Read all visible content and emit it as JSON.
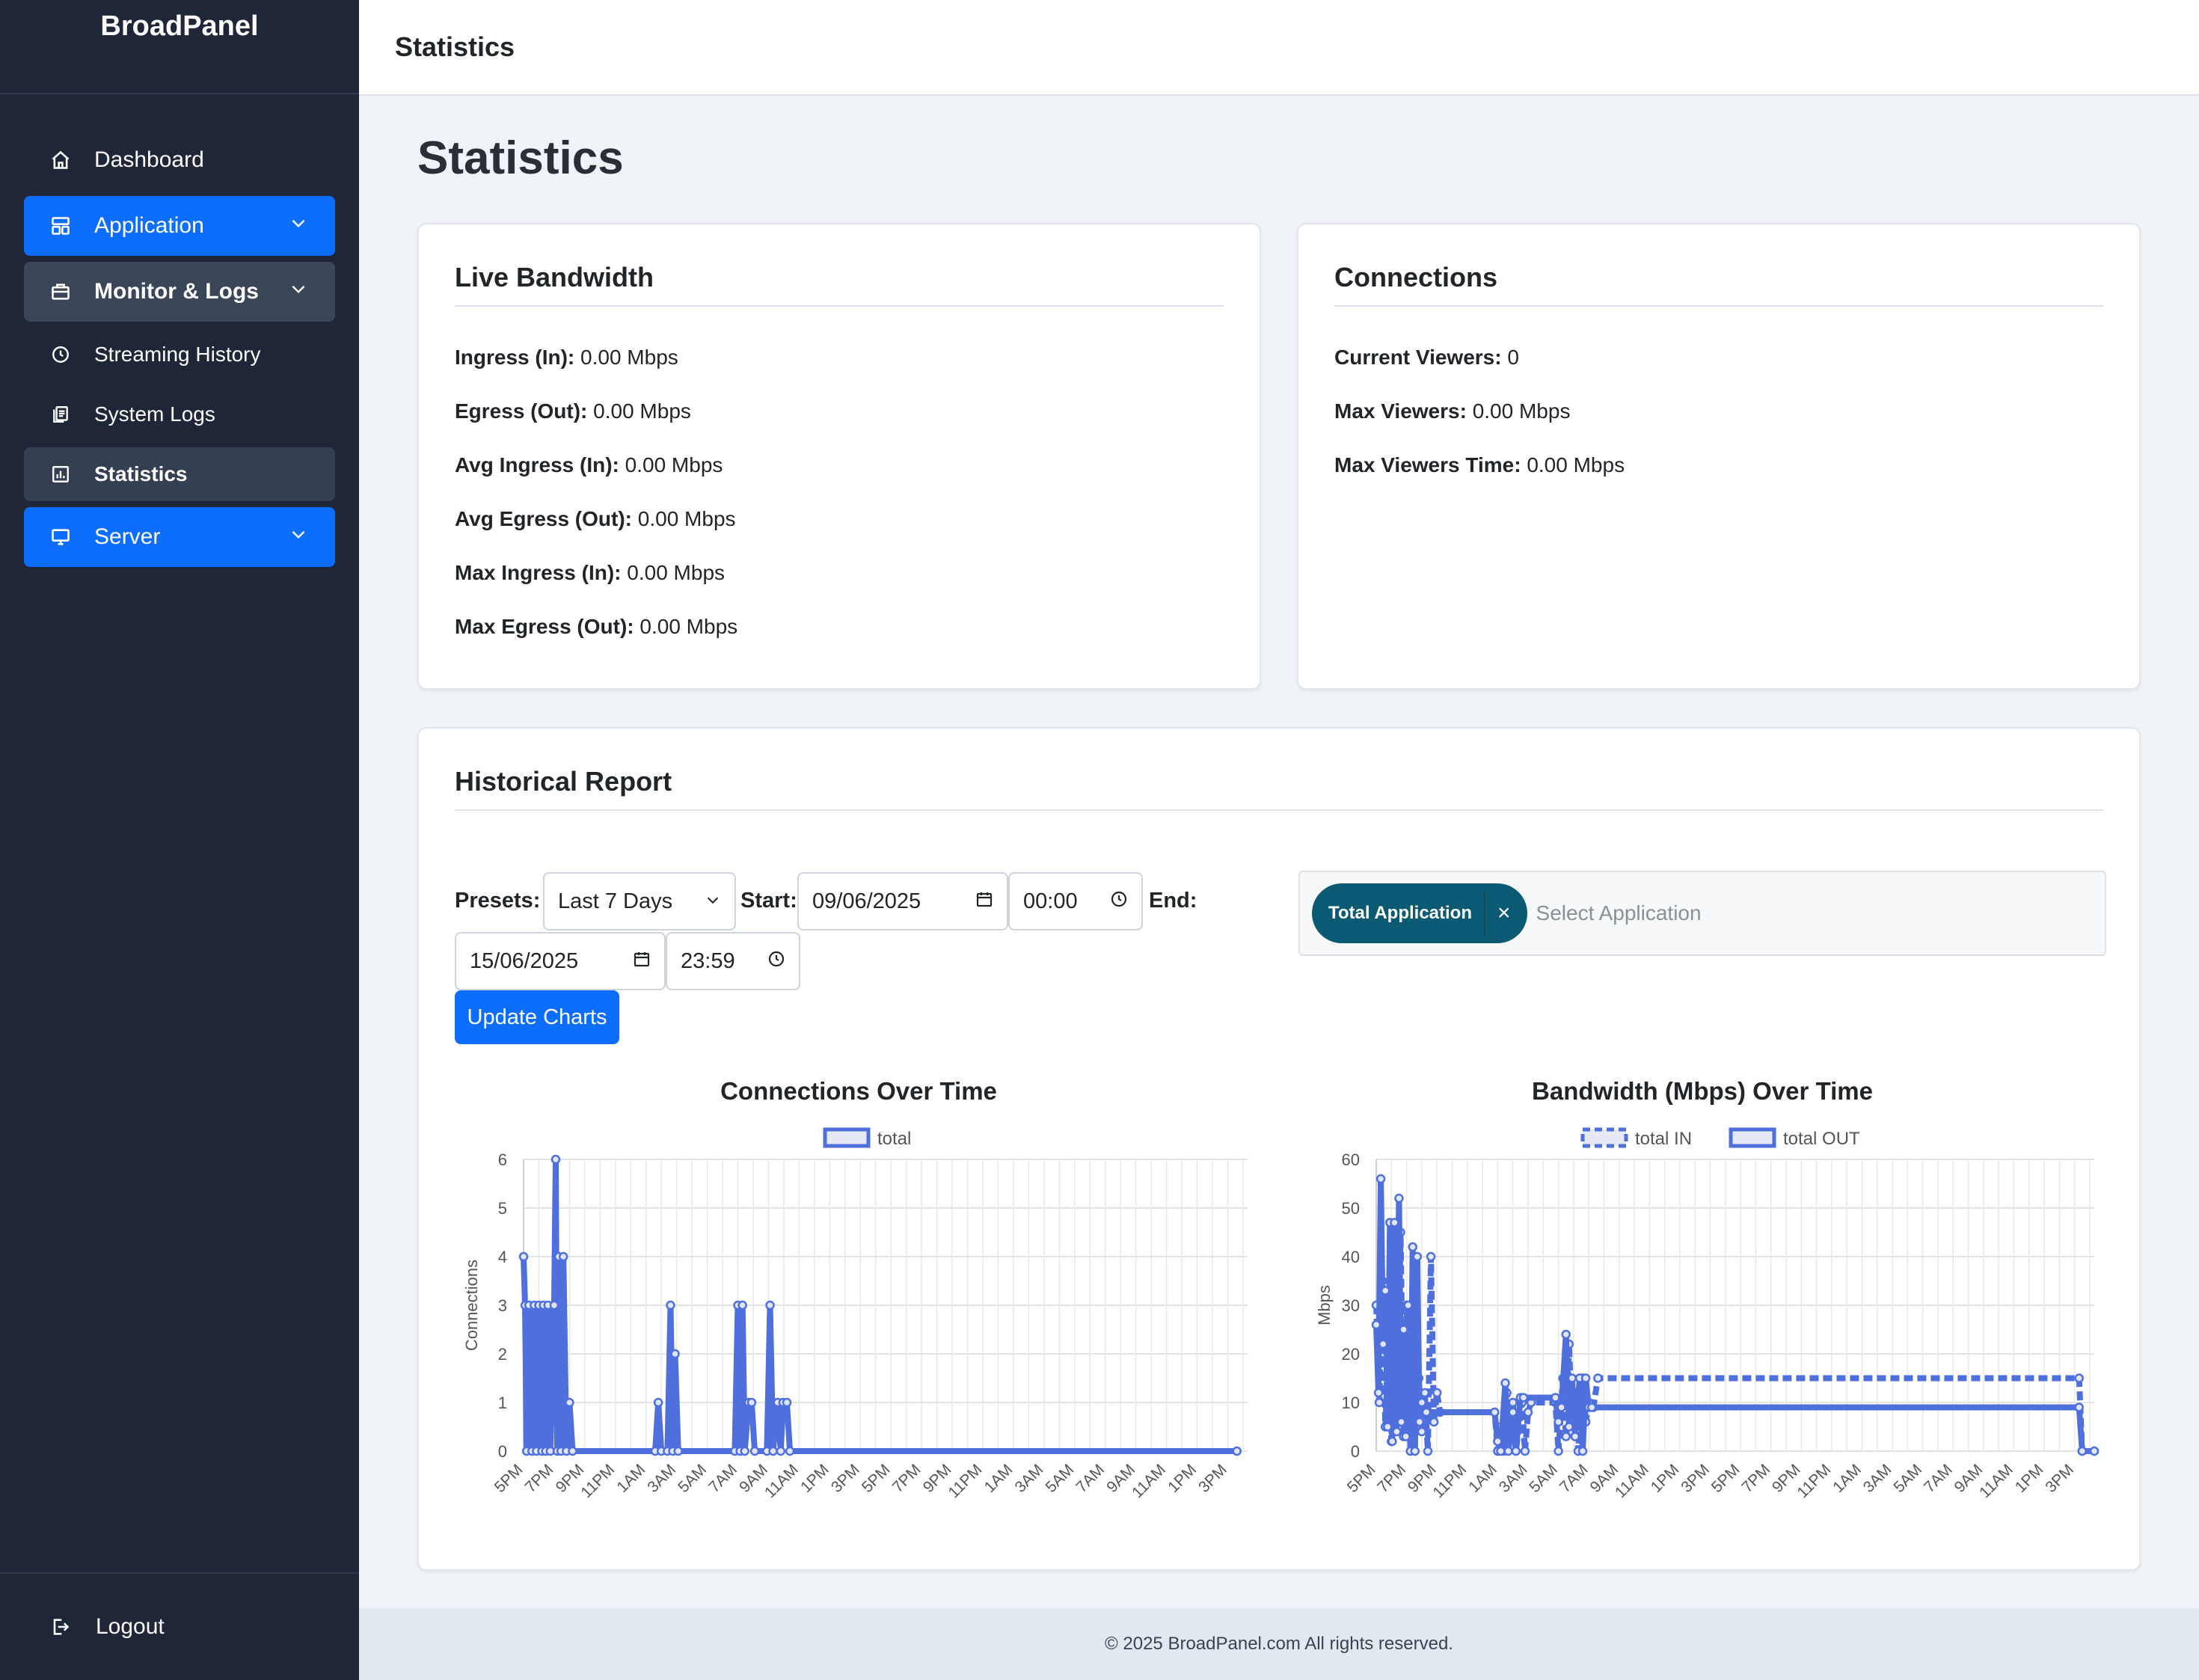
{
  "brand": "BroadPanel",
  "sidebar": {
    "items": [
      {
        "label": "Dashboard",
        "icon": "home-icon"
      },
      {
        "label": "Application",
        "icon": "layout-icon"
      },
      {
        "label": "Monitor & Logs",
        "icon": "briefcase-icon"
      },
      {
        "label": "Streaming History",
        "icon": "clock-icon"
      },
      {
        "label": "System Logs",
        "icon": "files-icon"
      },
      {
        "label": "Statistics",
        "icon": "bar-chart-icon"
      },
      {
        "label": "Server",
        "icon": "monitor-icon"
      }
    ],
    "logout": "Logout"
  },
  "header": {
    "title": "Statistics"
  },
  "page_title": "Statistics",
  "live_bandwidth": {
    "title": "Live Bandwidth",
    "rows": [
      {
        "label": "Ingress (In):",
        "value": "0.00 Mbps"
      },
      {
        "label": "Egress (Out):",
        "value": "0.00 Mbps"
      },
      {
        "label": "Avg Ingress (In):",
        "value": "0.00 Mbps"
      },
      {
        "label": "Avg Egress (Out):",
        "value": "0.00 Mbps"
      },
      {
        "label": "Max Ingress (In):",
        "value": "0.00 Mbps"
      },
      {
        "label": "Max Egress (Out):",
        "value": "0.00 Mbps"
      }
    ]
  },
  "connections": {
    "title": "Connections",
    "rows": [
      {
        "label": "Current Viewers:",
        "value": "0"
      },
      {
        "label": "Max Viewers:",
        "value": "0.00 Mbps"
      },
      {
        "label": "Max Viewers Time:",
        "value": "0.00 Mbps"
      }
    ]
  },
  "report": {
    "title": "Historical Report",
    "presets_label": "Presets:",
    "preset_value": "Last 7 Days",
    "start_label": "Start:",
    "start_date": "09/06/2025",
    "start_time": "00:00",
    "end_label": "End:",
    "end_date": "15/06/2025",
    "end_time": "23:59",
    "update_button": "Update Charts",
    "selected_tag": "Total Application",
    "tag_remove": "×",
    "select_placeholder": "Select Application"
  },
  "colors": {
    "series": "#4e6fdc",
    "accent": "#0d6efd",
    "tag": "#0a5a73"
  },
  "chart_data": [
    {
      "type": "line",
      "title": "Connections Over Time",
      "ylabel": "Connections",
      "ylim": [
        0,
        6
      ],
      "yticks": [
        0,
        1,
        2,
        3,
        4,
        5,
        6
      ],
      "xtick_labels": [
        "5PM",
        "7PM",
        "9PM",
        "11PM",
        "1AM",
        "3AM",
        "5AM",
        "7AM",
        "9AM",
        "11AM",
        "1PM",
        "3PM",
        "5PM",
        "7PM",
        "9PM",
        "11PM",
        "1AM",
        "3AM",
        "5AM",
        "7AM",
        "9AM",
        "11AM",
        "1PM",
        "3PM"
      ],
      "series": [
        {
          "name": "total",
          "style": "solid",
          "values": [
            [
              0,
              4
            ],
            [
              0.1,
              3
            ],
            [
              0.2,
              0
            ],
            [
              0.35,
              3
            ],
            [
              0.55,
              0
            ],
            [
              0.7,
              3
            ],
            [
              0.85,
              0
            ],
            [
              1.0,
              3
            ],
            [
              1.2,
              0
            ],
            [
              1.3,
              3
            ],
            [
              1.45,
              0
            ],
            [
              1.6,
              3
            ],
            [
              1.75,
              0
            ],
            [
              2.0,
              3
            ],
            [
              2.1,
              6
            ],
            [
              2.2,
              0
            ],
            [
              2.3,
              4
            ],
            [
              2.45,
              0
            ],
            [
              2.6,
              4
            ],
            [
              2.8,
              0
            ],
            [
              3.0,
              1
            ],
            [
              3.2,
              0
            ],
            [
              8.6,
              0
            ],
            [
              8.8,
              1
            ],
            [
              9.0,
              0
            ],
            [
              9.4,
              0
            ],
            [
              9.6,
              3
            ],
            [
              9.75,
              0
            ],
            [
              9.9,
              2
            ],
            [
              10.1,
              0
            ],
            [
              13.8,
              0
            ],
            [
              14.0,
              3
            ],
            [
              14.15,
              0
            ],
            [
              14.3,
              3
            ],
            [
              14.45,
              0
            ],
            [
              14.7,
              1
            ],
            [
              14.9,
              1
            ],
            [
              15.1,
              0
            ],
            [
              15.9,
              0
            ],
            [
              16.1,
              3
            ],
            [
              16.3,
              0
            ],
            [
              16.6,
              1
            ],
            [
              16.8,
              0
            ],
            [
              16.95,
              1
            ],
            [
              17.2,
              1
            ],
            [
              17.4,
              0
            ],
            [
              46.6,
              0
            ]
          ]
        }
      ]
    },
    {
      "type": "line",
      "title": "Bandwidth (Mbps) Over Time",
      "ylabel": "Mbps",
      "ylim": [
        0,
        60
      ],
      "yticks": [
        0,
        10,
        20,
        30,
        40,
        50,
        60
      ],
      "xtick_labels": [
        "5PM",
        "7PM",
        "9PM",
        "11PM",
        "1AM",
        "3AM",
        "5AM",
        "7AM",
        "9AM",
        "11AM",
        "1PM",
        "3PM",
        "5PM",
        "7PM",
        "9PM",
        "11PM",
        "1AM",
        "3AM",
        "5AM",
        "7AM",
        "9AM",
        "11AM",
        "1PM",
        "3PM"
      ],
      "series": [
        {
          "name": "total IN",
          "style": "dashed",
          "values": [
            [
              0,
              30
            ],
            [
              0.2,
              10
            ],
            [
              0.4,
              35
            ],
            [
              0.6,
              5
            ],
            [
              0.8,
              22
            ],
            [
              1.0,
              2
            ],
            [
              1.2,
              40
            ],
            [
              1.4,
              6
            ],
            [
              1.6,
              45
            ],
            [
              1.8,
              3
            ],
            [
              2.0,
              30
            ],
            [
              2.2,
              8
            ],
            [
              2.4,
              20
            ],
            [
              2.6,
              5
            ],
            [
              2.8,
              15
            ],
            [
              3.0,
              4
            ],
            [
              3.2,
              12
            ],
            [
              3.4,
              0
            ],
            [
              3.6,
              40
            ],
            [
              3.8,
              6
            ],
            [
              4.0,
              12
            ],
            [
              4.2,
              8
            ],
            [
              7.8,
              8
            ],
            [
              8.0,
              0
            ],
            [
              8.2,
              5
            ],
            [
              8.4,
              0
            ],
            [
              8.6,
              12
            ],
            [
              8.8,
              3
            ],
            [
              9.0,
              10
            ],
            [
              9.2,
              0
            ],
            [
              9.6,
              10
            ],
            [
              9.8,
              0
            ],
            [
              10.0,
              8
            ],
            [
              10.2,
              10
            ],
            [
              11.8,
              10
            ],
            [
              12.0,
              0
            ],
            [
              12.3,
              15
            ],
            [
              12.5,
              3
            ],
            [
              12.7,
              22
            ],
            [
              12.9,
              4
            ],
            [
              13.1,
              12
            ],
            [
              13.3,
              0
            ],
            [
              13.6,
              15
            ],
            [
              13.8,
              6
            ],
            [
              14.0,
              10
            ],
            [
              14.3,
              9
            ],
            [
              14.6,
              15
            ],
            [
              46.3,
              15
            ],
            [
              46.5,
              0
            ],
            [
              47.3,
              0
            ]
          ]
        },
        {
          "name": "total OUT",
          "style": "solid",
          "values": [
            [
              0,
              26
            ],
            [
              0.15,
              12
            ],
            [
              0.3,
              56
            ],
            [
              0.45,
              22
            ],
            [
              0.6,
              33
            ],
            [
              0.75,
              5
            ],
            [
              0.9,
              47
            ],
            [
              1.05,
              2
            ],
            [
              1.2,
              47
            ],
            [
              1.35,
              4
            ],
            [
              1.5,
              52
            ],
            [
              1.65,
              6
            ],
            [
              1.8,
              25
            ],
            [
              1.95,
              3
            ],
            [
              2.1,
              30
            ],
            [
              2.25,
              0
            ],
            [
              2.4,
              42
            ],
            [
              2.55,
              0
            ],
            [
              2.7,
              40
            ],
            [
              2.85,
              6
            ],
            [
              3.0,
              10
            ],
            [
              3.3,
              8
            ],
            [
              7.8,
              8
            ],
            [
              8.0,
              2
            ],
            [
              8.2,
              0
            ],
            [
              8.5,
              14
            ],
            [
              8.7,
              0
            ],
            [
              9.0,
              8
            ],
            [
              9.2,
              0
            ],
            [
              9.5,
              11
            ],
            [
              9.7,
              11
            ],
            [
              11.8,
              11
            ],
            [
              12.0,
              6
            ],
            [
              12.2,
              9
            ],
            [
              12.5,
              24
            ],
            [
              12.7,
              5
            ],
            [
              12.9,
              15
            ],
            [
              13.1,
              3
            ],
            [
              13.4,
              15
            ],
            [
              13.6,
              0
            ],
            [
              13.8,
              15
            ],
            [
              14.0,
              9
            ],
            [
              14.2,
              9
            ],
            [
              46.3,
              9
            ],
            [
              46.5,
              0
            ],
            [
              47.3,
              0
            ]
          ]
        }
      ]
    }
  ],
  "footer": "© 2025 BroadPanel.com All rights reserved."
}
